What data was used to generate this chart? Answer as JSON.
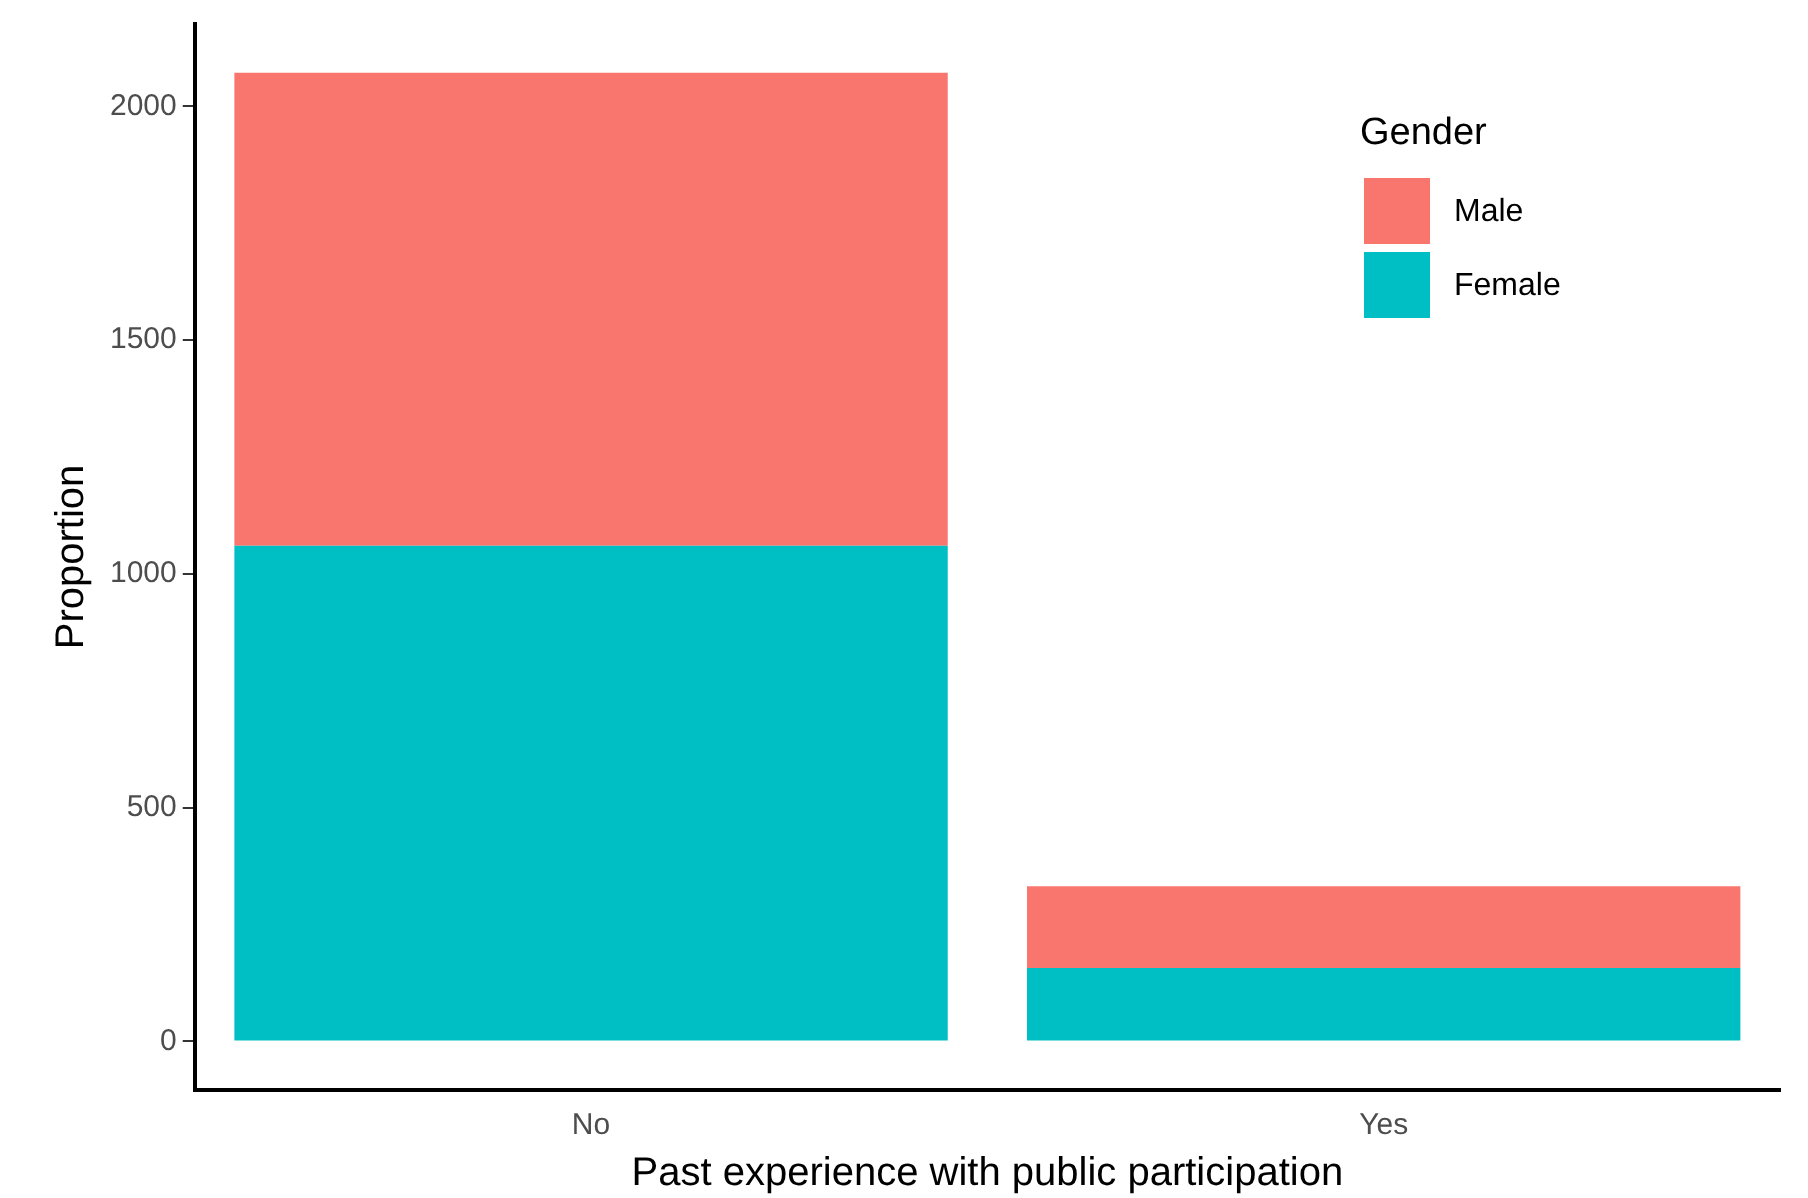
{
  "chart_data": {
    "type": "bar",
    "stacked": true,
    "xlabel": "Past experience with public participation",
    "ylabel": "Proportion",
    "legend_title": "Gender",
    "legend": "top right",
    "grid": false,
    "categories": [
      "No",
      "Yes"
    ],
    "series": [
      {
        "name": "Female",
        "color": "#00bfc4",
        "values": [
          1060,
          157
        ]
      },
      {
        "name": "Male",
        "color": "#f8766d",
        "values": [
          1012,
          175
        ]
      }
    ],
    "ylim": [
      -104,
      2176
    ],
    "yticks": [
      0,
      500,
      1000,
      1500,
      2000
    ]
  }
}
